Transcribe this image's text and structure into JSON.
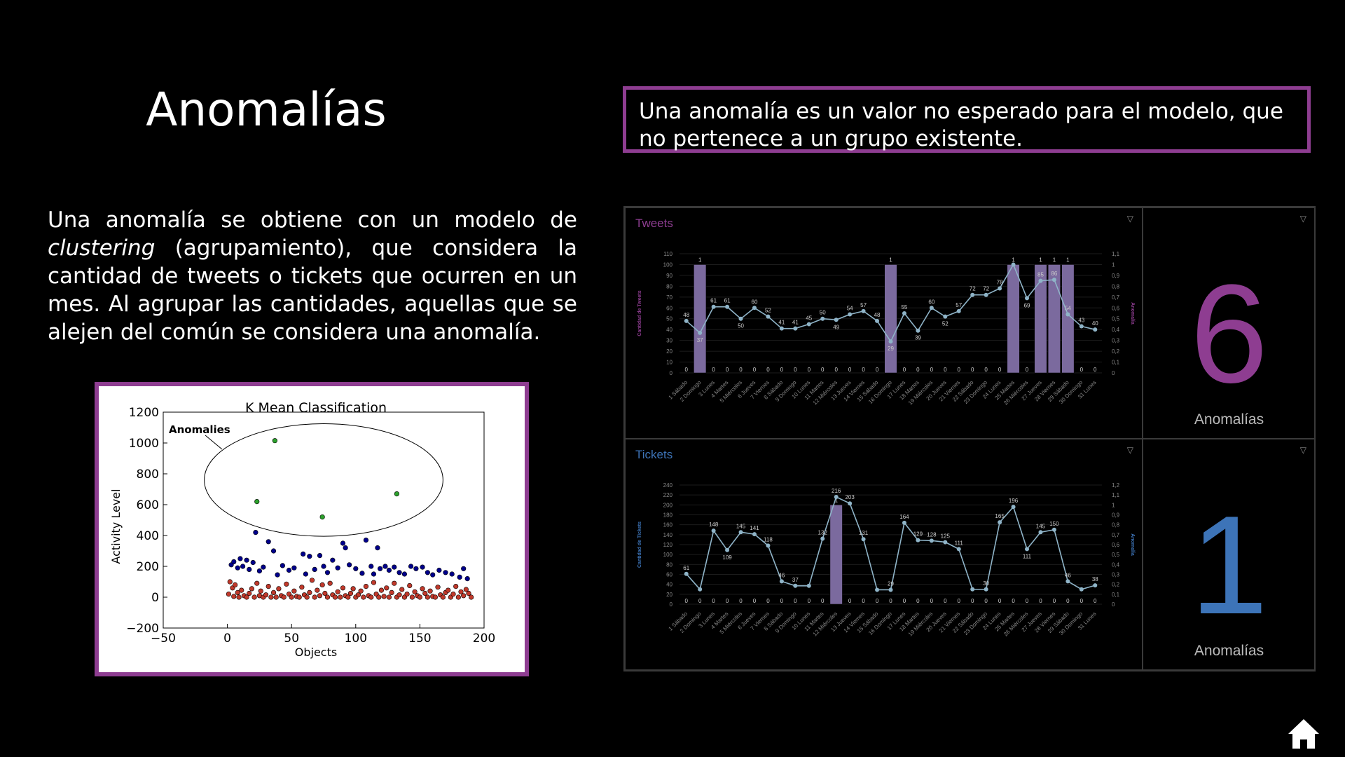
{
  "page": {
    "title": "Anomalías",
    "definition": "Una anomalía es un valor no esperado para el modelo, que no pertenece a un grupo existente.",
    "paragraph_before": "Una anomalía se obtiene con un modelo de ",
    "paragraph_italic": "clustering",
    "paragraph_after": " (agrupamiento), que considera la cantidad de tweets o tickets que ocurren en un mes. Al agrupar las cantidades, aquellas que se alejen del común se considera una anomalía.",
    "home_icon": "home-icon"
  },
  "colors": {
    "accent_border": "#8e3d91",
    "tweets_purple": "#8e3d91",
    "tickets_blue": "#3d74b8",
    "line": "#8fb4c8",
    "bar": "#7b6a9e"
  },
  "kmeans": {
    "title": "K Mean Classification",
    "xlabel": "Objects",
    "ylabel": "Activity Level",
    "annotation": "Anomalies",
    "xticks": [
      "−50",
      "0",
      "50",
      "100",
      "150",
      "200"
    ],
    "yticks": [
      "1200",
      "1000",
      "800",
      "600",
      "400",
      "200",
      "0",
      "−200"
    ]
  },
  "tweets_panel": {
    "title": "Tweets",
    "left_axis": "Cantidad de Tweets",
    "right_axis": "Anomalía",
    "anomaly_count": "6",
    "anomaly_label": "Anomalías"
  },
  "tickets_panel": {
    "title": "Tickets",
    "left_axis": "Cantidad de Tickets",
    "right_axis": "Anomalía",
    "anomaly_count": "1",
    "anomaly_label": "Anomalías"
  },
  "chart_data": [
    {
      "type": "scatter",
      "title": "K Mean Classification",
      "xlabel": "Objects",
      "ylabel": "Activity Level",
      "xlim": [
        -50,
        200
      ],
      "ylim": [
        -200,
        1200
      ],
      "series": [
        {
          "name": "",
          "color": "#2ca02c",
          "points": [
            [
              37,
              1015
            ],
            [
              23,
              620
            ],
            [
              74,
              520
            ],
            [
              132,
              670
            ]
          ]
        },
        {
          "name": "",
          "color": "#00008b",
          "points": [
            [
              3,
              210
            ],
            [
              5,
              230
            ],
            [
              8,
              190
            ],
            [
              10,
              250
            ],
            [
              12,
              200
            ],
            [
              15,
              240
            ],
            [
              17,
              180
            ],
            [
              20,
              225
            ],
            [
              22,
              420
            ],
            [
              25,
              170
            ],
            [
              28,
              195
            ],
            [
              32,
              360
            ],
            [
              36,
              300
            ],
            [
              39,
              145
            ],
            [
              43,
              205
            ],
            [
              48,
              175
            ],
            [
              52,
              190
            ],
            [
              59,
              280
            ],
            [
              61,
              150
            ],
            [
              64,
              265
            ],
            [
              68,
              180
            ],
            [
              72,
              270
            ],
            [
              75,
              200
            ],
            [
              78,
              160
            ],
            [
              82,
              240
            ],
            [
              86,
              190
            ],
            [
              90,
              350
            ],
            [
              92,
              320
            ],
            [
              95,
              210
            ],
            [
              100,
              185
            ],
            [
              105,
              155
            ],
            [
              108,
              370
            ],
            [
              112,
              200
            ],
            [
              114,
              150
            ],
            [
              117,
              320
            ],
            [
              119,
              185
            ],
            [
              123,
              200
            ],
            [
              126,
              175
            ],
            [
              130,
              195
            ],
            [
              134,
              160
            ],
            [
              138,
              150
            ],
            [
              143,
              200
            ],
            [
              147,
              185
            ],
            [
              152,
              195
            ],
            [
              156,
              160
            ],
            [
              160,
              145
            ],
            [
              165,
              175
            ],
            [
              170,
              160
            ],
            [
              175,
              150
            ],
            [
              181,
              130
            ],
            [
              184,
              185
            ],
            [
              187,
              120
            ]
          ]
        },
        {
          "name": "",
          "color": "#c0392b",
          "points": [
            [
              1,
              20
            ],
            [
              2,
              100
            ],
            [
              4,
              60
            ],
            [
              5,
              5
            ],
            [
              6,
              80
            ],
            [
              8,
              30
            ],
            [
              9,
              0
            ],
            [
              11,
              45
            ],
            [
              13,
              10
            ],
            [
              15,
              0
            ],
            [
              17,
              25
            ],
            [
              19,
              55
            ],
            [
              21,
              0
            ],
            [
              23,
              90
            ],
            [
              25,
              10
            ],
            [
              26,
              40
            ],
            [
              28,
              0
            ],
            [
              30,
              15
            ],
            [
              32,
              70
            ],
            [
              34,
              0
            ],
            [
              36,
              30
            ],
            [
              38,
              0
            ],
            [
              40,
              55
            ],
            [
              42,
              10
            ],
            [
              44,
              0
            ],
            [
              46,
              85
            ],
            [
              48,
              20
            ],
            [
              50,
              0
            ],
            [
              52,
              40
            ],
            [
              54,
              5
            ],
            [
              56,
              0
            ],
            [
              58,
              65
            ],
            [
              60,
              15
            ],
            [
              62,
              0
            ],
            [
              64,
              30
            ],
            [
              66,
              110
            ],
            [
              68,
              0
            ],
            [
              70,
              45
            ],
            [
              72,
              10
            ],
            [
              74,
              80
            ],
            [
              76,
              25
            ],
            [
              78,
              0
            ],
            [
              80,
              90
            ],
            [
              82,
              15
            ],
            [
              84,
              0
            ],
            [
              86,
              35
            ],
            [
              88,
              0
            ],
            [
              90,
              60
            ],
            [
              92,
              10
            ],
            [
              94,
              0
            ],
            [
              96,
              25
            ],
            [
              98,
              55
            ],
            [
              100,
              0
            ],
            [
              102,
              15
            ],
            [
              104,
              40
            ],
            [
              106,
              0
            ],
            [
              108,
              70
            ],
            [
              110,
              10
            ],
            [
              112,
              0
            ],
            [
              114,
              95
            ],
            [
              116,
              20
            ],
            [
              118,
              0
            ],
            [
              120,
              45
            ],
            [
              122,
              5
            ],
            [
              124,
              60
            ],
            [
              126,
              0
            ],
            [
              128,
              30
            ],
            [
              130,
              90
            ],
            [
              132,
              0
            ],
            [
              134,
              15
            ],
            [
              136,
              50
            ],
            [
              138,
              0
            ],
            [
              140,
              20
            ],
            [
              142,
              75
            ],
            [
              144,
              0
            ],
            [
              146,
              35
            ],
            [
              148,
              10
            ],
            [
              150,
              0
            ],
            [
              152,
              55
            ],
            [
              154,
              25
            ],
            [
              156,
              0
            ],
            [
              158,
              40
            ],
            [
              160,
              5
            ],
            [
              162,
              0
            ],
            [
              164,
              65
            ],
            [
              166,
              15
            ],
            [
              168,
              0
            ],
            [
              170,
              30
            ],
            [
              172,
              45
            ],
            [
              174,
              0
            ],
            [
              176,
              20
            ],
            [
              178,
              70
            ],
            [
              180,
              0
            ],
            [
              182,
              35
            ],
            [
              184,
              10
            ],
            [
              186,
              50
            ],
            [
              188,
              25
            ],
            [
              190,
              0
            ]
          ]
        }
      ]
    },
    {
      "type": "bar+line",
      "title": "Tweets",
      "ylabel": "Cantidad de Tweets",
      "y2label": "Anomalía",
      "ylim": [
        0,
        110
      ],
      "y2lim": [
        0,
        1.1
      ],
      "yticks": [
        "0",
        "10",
        "20",
        "30",
        "40",
        "50",
        "60",
        "70",
        "80",
        "90",
        "100",
        "110"
      ],
      "y2ticks": [
        "0",
        "0,1",
        "0,2",
        "0,3",
        "0,4",
        "0,5",
        "0,6",
        "0,7",
        "0,8",
        "0,9",
        "1",
        "1,1"
      ],
      "categories": [
        "1 Sábado",
        "2 Domingo",
        "3 Lunes",
        "4 Martes",
        "5 Miércoles",
        "6 Jueves",
        "7 Viernes",
        "8 Sábado",
        "9 Domingo",
        "10 Lunes",
        "11 Martes",
        "12 Miércoles",
        "13 Jueves",
        "14 Viernes",
        "15 Sábado",
        "16 Domingo",
        "17 Lunes",
        "18 Martes",
        "19 Miércoles",
        "20 Jueves",
        "21 Viernes",
        "22 Sábado",
        "23 Domingo",
        "24 Lunes",
        "25 Martes",
        "26 Miércoles",
        "27 Jueves",
        "28 Viernes",
        "29 Sábado",
        "30 Domingo",
        "31 Lunes"
      ],
      "line": [
        48,
        37,
        61,
        61,
        50,
        60,
        52,
        41,
        41,
        45,
        50,
        49,
        54,
        57,
        48,
        29,
        55,
        39,
        60,
        52,
        57,
        72,
        72,
        78,
        100,
        69,
        85,
        86,
        54,
        43,
        40
      ],
      "line_labels": [
        "48",
        "37",
        "61",
        "61",
        "50",
        "60",
        "52",
        "41",
        "41",
        "45",
        "50",
        "49",
        "54",
        "57",
        "48",
        "29",
        "55",
        "39",
        "60",
        "52",
        "57",
        "72",
        "72",
        "78",
        "",
        "69",
        "85",
        "86",
        "54",
        "43",
        "40"
      ],
      "anomaly": [
        0,
        1,
        0,
        0,
        0,
        0,
        0,
        0,
        0,
        0,
        0,
        0,
        0,
        0,
        0,
        1,
        0,
        0,
        0,
        0,
        0,
        0,
        0,
        0,
        1,
        0,
        1,
        1,
        1,
        0,
        0
      ]
    },
    {
      "type": "bar+line",
      "title": "Tickets",
      "ylabel": "Cantidad de Tickets",
      "y2label": "Anomalía",
      "ylim": [
        0,
        240
      ],
      "y2lim": [
        0,
        1.2
      ],
      "yticks": [
        "0",
        "20",
        "40",
        "60",
        "80",
        "100",
        "120",
        "140",
        "160",
        "180",
        "200",
        "220",
        "240"
      ],
      "y2ticks": [
        "0",
        "0,1",
        "0,2",
        "0,3",
        "0,4",
        "0,5",
        "0,6",
        "0,7",
        "0,8",
        "0,9",
        "1",
        "1,1",
        "1,2"
      ],
      "categories": [
        "1 Sábado",
        "2 Domingo",
        "3 Lunes",
        "4 Martes",
        "5 Miércoles",
        "6 Jueves",
        "7 Viernes",
        "8 Sábado",
        "9 Domingo",
        "10 Lunes",
        "11 Martes",
        "12 Miércoles",
        "13 Jueves",
        "14 Viernes",
        "15 Sábado",
        "16 Domingo",
        "17 Lunes",
        "18 Martes",
        "19 Miércoles",
        "20 Jueves",
        "21 Viernes",
        "22 Sábado",
        "23 Domingo",
        "24 Lunes",
        "25 Martes",
        "26 Miércoles",
        "27 Jueves",
        "28 Viernes",
        "29 Sábado",
        "30 Domingo",
        "31 Lunes"
      ],
      "line": [
        61,
        30,
        148,
        109,
        145,
        141,
        118,
        46,
        37,
        37,
        132,
        216,
        203,
        131,
        29,
        29,
        164,
        129,
        128,
        125,
        111,
        30,
        30,
        165,
        196,
        111,
        145,
        150,
        46,
        30,
        38
      ],
      "line_labels": [
        "61",
        "",
        "148",
        "109",
        "145",
        "141",
        "118",
        "46",
        "37",
        "",
        "132",
        "216",
        "203",
        "131",
        "",
        "29",
        "164",
        "129",
        "128",
        "125",
        "111",
        "",
        "30",
        "165",
        "196",
        "111",
        "145",
        "150",
        "46",
        "",
        "38"
      ],
      "anomaly": [
        0,
        0,
        0,
        0,
        0,
        0,
        0,
        0,
        0,
        0,
        0,
        1,
        0,
        0,
        0,
        0,
        0,
        0,
        0,
        0,
        0,
        0,
        0,
        0,
        0,
        0,
        0,
        0,
        0,
        0,
        0
      ]
    }
  ]
}
